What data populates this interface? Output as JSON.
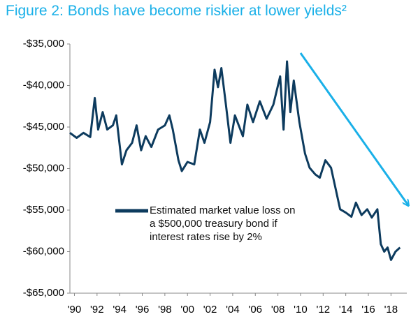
{
  "chart_data": {
    "type": "line",
    "title": "Figure 2: Bonds have become riskier at lower yields²",
    "x": [
      1989.6,
      1990.2,
      1990.8,
      1991.4,
      1991.8,
      1992.1,
      1992.5,
      1992.9,
      1993.4,
      1993.7,
      1994.2,
      1994.6,
      1995.1,
      1995.5,
      1995.9,
      1996.3,
      1996.8,
      1997.4,
      1998.0,
      1998.4,
      1998.7,
      1999.2,
      1999.5,
      2000.0,
      2000.6,
      2001.1,
      2001.5,
      2002.0,
      2002.4,
      2002.7,
      2003.0,
      2003.4,
      2003.8,
      2004.2,
      2004.9,
      2005.3,
      2005.8,
      2006.4,
      2007.0,
      2007.6,
      2008.2,
      2008.5,
      2008.8,
      2009.1,
      2009.4,
      2009.9,
      2010.4,
      2010.8,
      2011.3,
      2011.7,
      2012.2,
      2012.7,
      2013.1,
      2013.5,
      2014.0,
      2014.5,
      2014.9,
      2015.4,
      2015.9,
      2016.3,
      2016.8,
      2017.1,
      2017.4,
      2017.7,
      2018.0,
      2018.4,
      2018.8
    ],
    "series": [
      {
        "name": "Estimated market value loss on a $500,000 treasury bond if interest rates rise by 2%",
        "color": "#0d3b5e",
        "values": [
          -45700,
          -46300,
          -45700,
          -46200,
          -41500,
          -45300,
          -43200,
          -45300,
          -44800,
          -43600,
          -49500,
          -47800,
          -46900,
          -44800,
          -47800,
          -46100,
          -47400,
          -45300,
          -44800,
          -43600,
          -45300,
          -49000,
          -50300,
          -49200,
          -49500,
          -45300,
          -46900,
          -44400,
          -38100,
          -40200,
          -37900,
          -42300,
          -46900,
          -43600,
          -46100,
          -42300,
          -44400,
          -41900,
          -44000,
          -42300,
          -38900,
          -45300,
          -37100,
          -43200,
          -39400,
          -44400,
          -48200,
          -49900,
          -50700,
          -51100,
          -49000,
          -49900,
          -52400,
          -54900,
          -55300,
          -55800,
          -54100,
          -55600,
          -54900,
          -55900,
          -54900,
          -59100,
          -60000,
          -59500,
          -61000,
          -60000,
          -59500
        ]
      }
    ],
    "xlim": [
      1989.6,
      2019.4
    ],
    "xticks": [
      {
        "value": 1990,
        "label": "'90"
      },
      {
        "value": 1992,
        "label": "'92"
      },
      {
        "value": 1994,
        "label": "'94"
      },
      {
        "value": 1996,
        "label": "'96"
      },
      {
        "value": 1998,
        "label": "'98"
      },
      {
        "value": 2000,
        "label": "'00"
      },
      {
        "value": 2002,
        "label": "'02"
      },
      {
        "value": 2004,
        "label": "'04"
      },
      {
        "value": 2006,
        "label": "'06"
      },
      {
        "value": 2008,
        "label": "'08"
      },
      {
        "value": 2010,
        "label": "'10"
      },
      {
        "value": 2012,
        "label": "'12"
      },
      {
        "value": 2014,
        "label": "'14"
      },
      {
        "value": 2016,
        "label": "'16"
      },
      {
        "value": 2018,
        "label": "'18"
      }
    ],
    "ylim": [
      -65000,
      -35000
    ],
    "yticks": [
      {
        "value": -35000,
        "label": "-$35,000"
      },
      {
        "value": -40000,
        "label": "-$40,000"
      },
      {
        "value": -45000,
        "label": "-$45,000"
      },
      {
        "value": -50000,
        "label": "-$50,000"
      },
      {
        "value": -55000,
        "label": "-$55,000"
      },
      {
        "value": -60000,
        "label": "-$60,000"
      },
      {
        "value": -65000,
        "label": "-$65,000"
      }
    ],
    "grid": false
  }
}
